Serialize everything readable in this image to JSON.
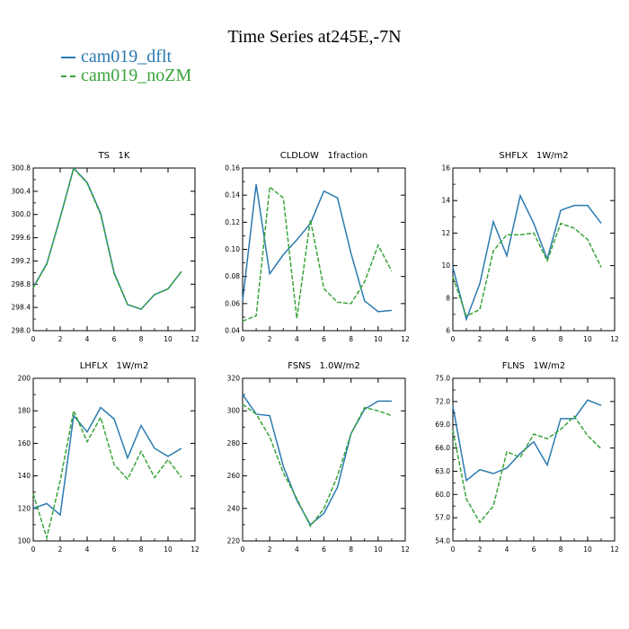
{
  "title": "Time Series at245E,-7N",
  "legend": [
    {
      "name": "cam019_dflt",
      "color": "#2a7ab0"
    },
    {
      "name": "cam019_noZM",
      "color": "#3aa43a"
    }
  ],
  "chart_data": [
    {
      "type": "line",
      "title": "TS   1K",
      "x": [
        0,
        1,
        2,
        3,
        4,
        5,
        6,
        7,
        8,
        9,
        10,
        11
      ],
      "xlim": [
        0,
        12
      ],
      "xticks": [
        0,
        2,
        4,
        6,
        8,
        10,
        12
      ],
      "ylim": [
        298.0,
        300.8
      ],
      "yticks": [
        "298.0",
        "298.4",
        "298.8",
        "299.2",
        "299.6",
        "300.0",
        "300.4",
        "300.8"
      ],
      "series": [
        {
          "name": "cam019_dflt",
          "values": [
            298.75,
            299.15,
            299.95,
            300.8,
            300.55,
            300.02,
            299.0,
            298.45,
            298.37,
            298.62,
            298.72,
            299.02
          ]
        },
        {
          "name": "cam019_noZM",
          "values": [
            298.74,
            299.14,
            299.94,
            300.79,
            300.54,
            300.0,
            298.98,
            298.45,
            298.37,
            298.62,
            298.72,
            299.02
          ]
        }
      ]
    },
    {
      "type": "line",
      "title": "CLDLOW   1fraction",
      "x": [
        0,
        1,
        2,
        3,
        4,
        5,
        6,
        7,
        8,
        9,
        10,
        11
      ],
      "xlim": [
        0,
        12
      ],
      "xticks": [
        0,
        2,
        4,
        6,
        8,
        10,
        12
      ],
      "ylim": [
        0.04,
        0.16
      ],
      "yticks": [
        "0.04",
        "0.06",
        "0.08",
        "0.10",
        "0.12",
        "0.14",
        "0.16"
      ],
      "series": [
        {
          "name": "cam019_dflt",
          "values": [
            0.062,
            0.148,
            0.082,
            0.096,
            0.107,
            0.119,
            0.143,
            0.138,
            0.097,
            0.062,
            0.054,
            0.055
          ]
        },
        {
          "name": "cam019_noZM",
          "values": [
            0.047,
            0.051,
            0.146,
            0.138,
            0.049,
            0.122,
            0.071,
            0.061,
            0.06,
            0.076,
            0.103,
            0.084
          ]
        }
      ]
    },
    {
      "type": "line",
      "title": "SHFLX   1W/m2",
      "x": [
        0,
        1,
        2,
        3,
        4,
        5,
        6,
        7,
        8,
        9,
        10,
        11
      ],
      "xlim": [
        0,
        12
      ],
      "xticks": [
        0,
        2,
        4,
        6,
        8,
        10,
        12
      ],
      "ylim": [
        6,
        16
      ],
      "yticks": [
        "6",
        "8",
        "10",
        "12",
        "14",
        "16"
      ],
      "series": [
        {
          "name": "cam019_dflt",
          "values": [
            9.9,
            6.7,
            8.9,
            12.7,
            10.6,
            14.3,
            12.6,
            10.4,
            13.4,
            13.7,
            13.7,
            12.6
          ]
        },
        {
          "name": "cam019_noZM",
          "values": [
            9.3,
            6.9,
            7.3,
            10.9,
            11.9,
            11.9,
            12.0,
            10.3,
            12.6,
            12.3,
            11.6,
            9.9
          ]
        }
      ]
    },
    {
      "type": "line",
      "title": "LHFLX   1W/m2",
      "x": [
        0,
        1,
        2,
        3,
        4,
        5,
        6,
        7,
        8,
        9,
        10,
        11
      ],
      "xlim": [
        0,
        12
      ],
      "xticks": [
        0,
        2,
        4,
        6,
        8,
        10,
        12
      ],
      "ylim": [
        100,
        200
      ],
      "yticks": [
        "100",
        "120",
        "140",
        "160",
        "180",
        "200"
      ],
      "series": [
        {
          "name": "cam019_dflt",
          "values": [
            120,
            123,
            116,
            177,
            167,
            182,
            175,
            151,
            171,
            157,
            152,
            157
          ]
        },
        {
          "name": "cam019_noZM",
          "values": [
            129,
            102,
            137,
            180,
            161,
            176,
            147,
            138,
            155,
            139,
            150,
            139
          ]
        }
      ]
    },
    {
      "type": "line",
      "title": "FSNS   1.0W/m2",
      "x": [
        0,
        1,
        2,
        3,
        4,
        5,
        6,
        7,
        8,
        9,
        10,
        11
      ],
      "xlim": [
        0,
        12
      ],
      "xticks": [
        0,
        2,
        4,
        6,
        8,
        10,
        12
      ],
      "ylim": [
        220,
        320
      ],
      "yticks": [
        "220",
        "240",
        "260",
        "280",
        "300",
        "320"
      ],
      "series": [
        {
          "name": "cam019_dflt",
          "values": [
            310,
            298,
            297,
            266,
            245,
            230,
            237,
            253,
            286,
            301,
            306,
            306
          ]
        },
        {
          "name": "cam019_noZM",
          "values": [
            304,
            298,
            284,
            262,
            246,
            229,
            240,
            260,
            286,
            302,
            300,
            297
          ]
        }
      ]
    },
    {
      "type": "line",
      "title": "FLNS   1W/m2",
      "x": [
        0,
        1,
        2,
        3,
        4,
        5,
        6,
        7,
        8,
        9,
        10,
        11
      ],
      "xlim": [
        0,
        12
      ],
      "xticks": [
        0,
        2,
        4,
        6,
        8,
        10,
        12
      ],
      "ylim": [
        54.0,
        75.0
      ],
      "yticks": [
        "54.0",
        "57.0",
        "60.0",
        "63.0",
        "66.0",
        "69.0",
        "72.0",
        "75.0"
      ],
      "series": [
        {
          "name": "cam019_dflt",
          "values": [
            71.4,
            61.8,
            63.2,
            62.7,
            63.4,
            65.3,
            66.8,
            63.8,
            69.8,
            69.8,
            72.2,
            71.5
          ]
        },
        {
          "name": "cam019_noZM",
          "values": [
            68.3,
            59.4,
            56.4,
            58.5,
            65.5,
            64.8,
            67.8,
            67.2,
            68.4,
            70.1,
            67.6,
            65.9
          ]
        }
      ]
    }
  ]
}
